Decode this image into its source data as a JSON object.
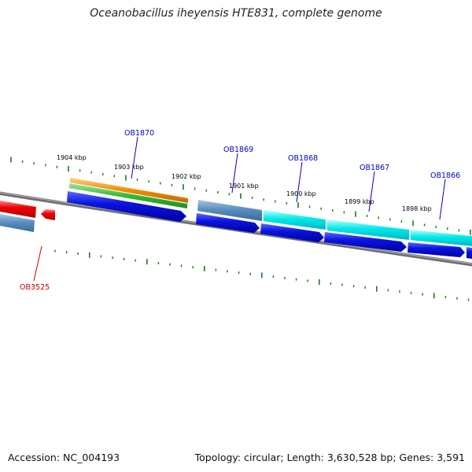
{
  "title": "Oceanobacillus iheyensis HTE831, complete genome",
  "accession_text": "Accession: NC_004193",
  "topology_text": "Topology: circular; Length: 3,630,528 bp; Genes: 3,591",
  "colors": {
    "forward_label": "#0000cc",
    "reverse_label": "#cc0000",
    "tick": "#1a7a1a",
    "backbone": "#7a7a7a",
    "cds_forward": "#0000dd",
    "cds_reverse": "#ee0000",
    "feature_cyan": "#00e5e5",
    "feature_steel": "#4f86b5",
    "feature_orange": "#f28c00",
    "feature_green": "#33bb33"
  },
  "kbp_labels": [
    "1904 kbp",
    "1903 kbp",
    "1902 kbp",
    "1901 kbp",
    "1900 kbp",
    "1899 kbp",
    "1898 kbp"
  ],
  "genes_forward": [
    "OB1870",
    "OB1869",
    "OB1868",
    "OB1867",
    "OB1866"
  ],
  "genes_reverse": [
    "OB3525"
  ]
}
